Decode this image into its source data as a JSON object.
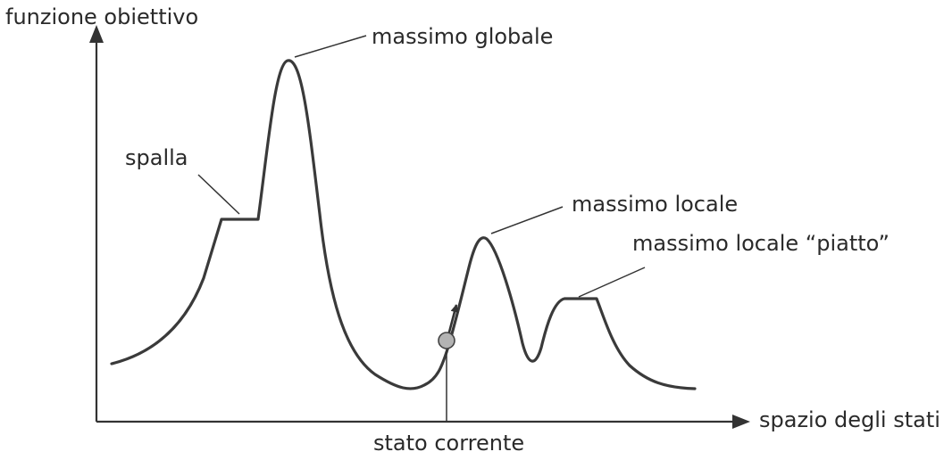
{
  "axes": {
    "y_label": "funzione obiettivo",
    "x_label": "spazio degli stati"
  },
  "annotations": {
    "global_max": "massimo globale",
    "shoulder": "spalla",
    "local_max": "massimo locale",
    "flat_local_max": "massimo locale “piatto”",
    "current_state": "stato corrente"
  },
  "colors": {
    "ink": "#3a3a3a",
    "current_state_marker": "#b3b3b3"
  }
}
